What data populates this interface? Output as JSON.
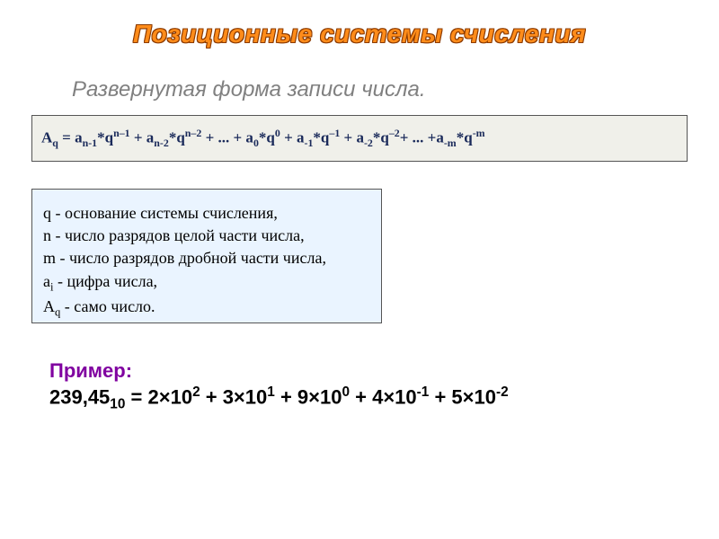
{
  "title": {
    "text": "Позиционные системы счисления",
    "fill_color": "#ff8c1a",
    "stroke_color": "#8b3a00",
    "font_size": 28,
    "font_style": "bold italic"
  },
  "subtitle": {
    "text": "Развернутая форма записи числа.",
    "color": "#808080",
    "font_size": 24,
    "font_style": "italic"
  },
  "formula": {
    "type": "equation",
    "background_color": "#f0f0ea",
    "border_color": "#555555",
    "text_color": "#1a2a5a",
    "font_family": "Times New Roman",
    "font_size": 17,
    "font_weight": "bold",
    "tokens": [
      {
        "t": "A"
      },
      {
        "t": "q",
        "sub": true
      },
      {
        "t": " = a"
      },
      {
        "t": "n-1",
        "sub": true
      },
      {
        "t": "*q"
      },
      {
        "t": "n–1",
        "sup": true
      },
      {
        "t": " + a"
      },
      {
        "t": "n-2",
        "sub": true
      },
      {
        "t": "*q"
      },
      {
        "t": "n–2",
        "sup": true
      },
      {
        "t": " +  ... + a"
      },
      {
        "t": "0",
        "sub": true
      },
      {
        "t": "*q"
      },
      {
        "t": "0",
        "sup": true
      },
      {
        "t": "  + a"
      },
      {
        "t": "-1",
        "sub": true
      },
      {
        "t": "*q"
      },
      {
        "t": "–1",
        "sup": true
      },
      {
        "t": " + a"
      },
      {
        "t": "-2",
        "sub": true
      },
      {
        "t": "*q"
      },
      {
        "t": "–2",
        "sup": true
      },
      {
        "t": "+ ...  +a"
      },
      {
        "t": "-m",
        "sub": true
      },
      {
        "t": "*q"
      },
      {
        "t": "-m",
        "sup": true
      }
    ]
  },
  "legend": {
    "background_color": "#eaf4ff",
    "border_color": "#555555",
    "text_color": "#000000",
    "font_family": "Times New Roman",
    "font_size": 18,
    "lines": [
      [
        {
          "t": "q - основание системы счисления,"
        }
      ],
      [
        {
          "t": "n -  число разрядов целой части числа,"
        }
      ],
      [
        {
          "t": "m - число разрядов дробной части числа,"
        }
      ],
      [
        {
          "t": "a"
        },
        {
          "t": "i",
          "sub": true
        },
        {
          "t": " - цифра числа,"
        }
      ],
      [
        {
          "t": "A"
        },
        {
          "t": "q",
          "sub": true
        },
        {
          "t": " - само число."
        }
      ]
    ]
  },
  "example": {
    "label": "Пример:",
    "label_color": "#8000a0",
    "text_color": "#000000",
    "font_size": 22,
    "font_weight": "bold",
    "tokens": [
      {
        "t": "239,45"
      },
      {
        "t": "10",
        "sub": true
      },
      {
        "t": " = 2×10"
      },
      {
        "t": "2",
        "sup": true
      },
      {
        "t": " + 3×10"
      },
      {
        "t": "1",
        "sup": true
      },
      {
        "t": " + 9×10"
      },
      {
        "t": "0",
        "sup": true
      },
      {
        "t": " + 4×10"
      },
      {
        "t": "-1",
        "sup": true
      },
      {
        "t": " + 5×10"
      },
      {
        "t": "-2",
        "sup": true
      }
    ]
  }
}
